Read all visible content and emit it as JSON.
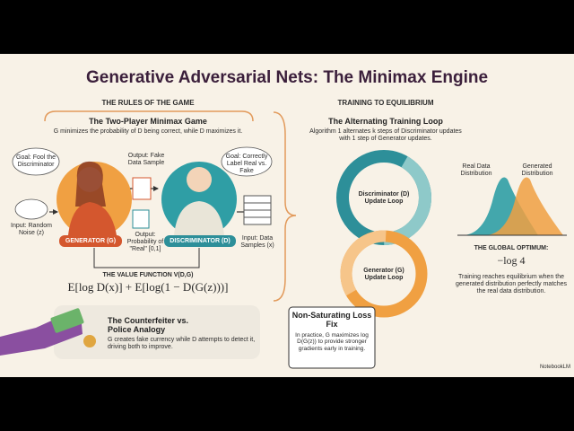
{
  "title": "Generative Adversarial Nets: The Minimax Engine",
  "rules": {
    "heading": "THE RULES OF THE GAME",
    "subtitle": "The Two-Player Minimax Game",
    "description": "G minimizes the probability of D being correct, while D maximizes it.",
    "generator_goal": "Goal: Fool the Discriminator",
    "discriminator_goal": "Goal: Correctly Label Real vs. Fake",
    "noise_input": "Input: Random Noise (z)",
    "fake_output": "Output: Fake Data Sample",
    "probability_output": "Output: Probability of \"Real\" [0,1]",
    "data_input": "Input: Data Samples (x)",
    "generator_label": "GENERATOR (G)",
    "discriminator_label": "DISCRIMINATOR (D)",
    "value_function_heading": "THE VALUE FUNCTION V(D,G)",
    "value_function": "E[log D(x)] + E[log(1 − D(G(z)))]"
  },
  "analogy": {
    "title": "The Counterfeiter vs. Police Analogy",
    "text": "G creates fake currency while D attempts to detect it, driving both to improve."
  },
  "training": {
    "heading": "TRAINING TO EQUILIBRIUM",
    "subtitle": "The Alternating Training Loop",
    "description": "Algorithm 1 alternates k steps of Discriminator updates with 1 step of Generator updates.",
    "discriminator_loop": "Discriminator (D) Update Loop",
    "generator_loop": "Generator (G) Update Loop",
    "fix_title": "Non-Saturating Loss Fix",
    "fix_text": "In practice, G maximizes log D(G(z)) to provide stronger gradients early in training."
  },
  "optimum": {
    "real_label": "Real Data Distribution",
    "generated_label": "Generated Distribution",
    "heading": "THE GLOBAL OPTIMUM:",
    "value": "−log 4",
    "text": "Training reaches equilibrium when the generated distribution perfectly matches the real data distribution."
  },
  "brand": "NotebookLM"
}
